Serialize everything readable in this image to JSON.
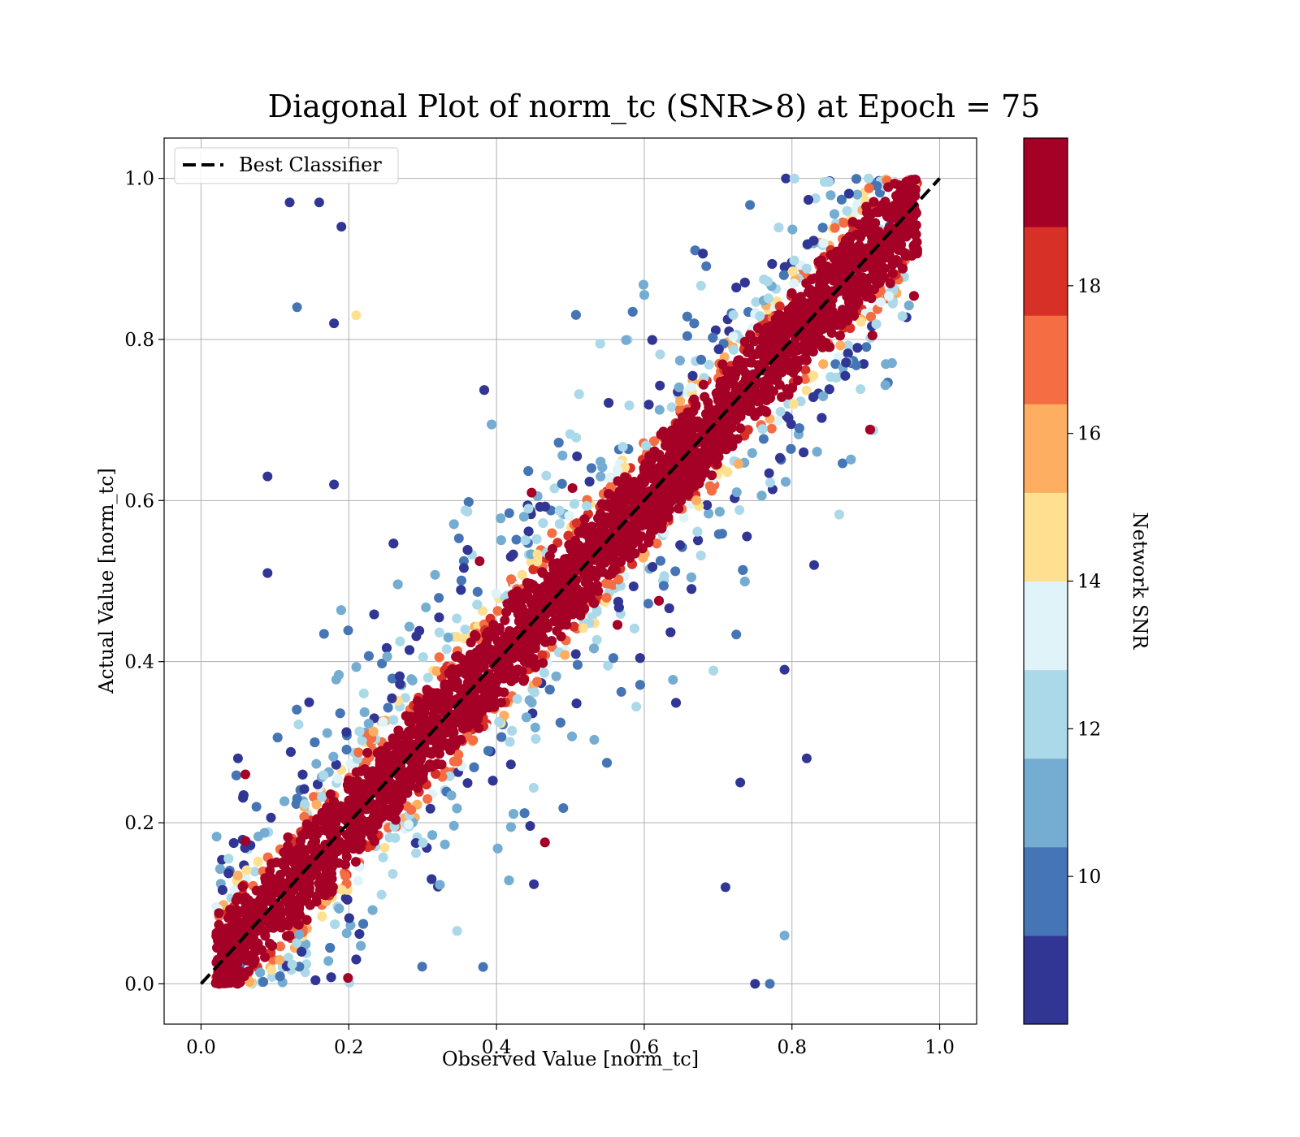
{
  "chart_data": {
    "type": "scatter",
    "title": "Diagonal Plot of norm_tc (SNR>8) at Epoch = 75",
    "xlabel": "Observed Value [norm_tc]",
    "ylabel": "Actual Value [norm_tc]",
    "xlim": [
      -0.05,
      1.05
    ],
    "ylim": [
      -0.05,
      1.05
    ],
    "xticks": [
      0.0,
      0.2,
      0.4,
      0.6,
      0.8,
      1.0
    ],
    "yticks": [
      0.0,
      0.2,
      0.4,
      0.6,
      0.8,
      1.0
    ],
    "xtick_labels": [
      "0.0",
      "0.2",
      "0.4",
      "0.6",
      "0.8",
      "1.0"
    ],
    "ytick_labels": [
      "0.0",
      "0.2",
      "0.4",
      "0.6",
      "0.8",
      "1.0"
    ],
    "grid": true,
    "legend": {
      "position": "top-left",
      "entries": [
        "Best Classifier"
      ]
    },
    "reference_line": {
      "name": "Best Classifier",
      "x": [
        0.0,
        1.0
      ],
      "y": [
        0.0,
        1.0
      ],
      "style": "dashed",
      "color": "#000000"
    },
    "colorbar": {
      "label": "Network SNR",
      "range": [
        8,
        20
      ],
      "ticks": [
        10,
        12,
        14,
        16,
        18
      ],
      "tick_labels": [
        "10",
        "12",
        "14",
        "16",
        "18"
      ],
      "colors": [
        "#313695",
        "#4575b4",
        "#74add1",
        "#abd9e9",
        "#e0f3f8",
        "#fee090",
        "#fdae61",
        "#f46d43",
        "#d73027",
        "#a50026"
      ]
    },
    "series": [
      {
        "marker": "circle",
        "description_of_distribution": "dense diagonal band",
        "points_sample": [
          {
            "x": 0.12,
            "y": 0.97,
            "snr": 9
          },
          {
            "x": 0.16,
            "y": 0.97,
            "snr": 9
          },
          {
            "x": 0.13,
            "y": 0.84,
            "snr": 10
          },
          {
            "x": 0.19,
            "y": 0.94,
            "snr": 9
          },
          {
            "x": 0.21,
            "y": 0.83,
            "snr": 15
          },
          {
            "x": 0.18,
            "y": 0.82,
            "snr": 9
          },
          {
            "x": 0.09,
            "y": 0.63,
            "snr": 9
          },
          {
            "x": 0.18,
            "y": 0.62,
            "snr": 9
          },
          {
            "x": 0.09,
            "y": 0.51,
            "snr": 9
          },
          {
            "x": 0.82,
            "y": 0.28,
            "snr": 9
          },
          {
            "x": 0.79,
            "y": 0.39,
            "snr": 9
          },
          {
            "x": 0.75,
            "y": 0.0,
            "snr": 9
          },
          {
            "x": 0.79,
            "y": 0.06,
            "snr": 11
          },
          {
            "x": 0.77,
            "y": 0.0,
            "snr": 10
          },
          {
            "x": 0.71,
            "y": 0.12,
            "snr": 9
          },
          {
            "x": 0.73,
            "y": 0.25,
            "snr": 9
          },
          {
            "x": 0.83,
            "y": 0.52,
            "snr": 9
          },
          {
            "x": 0.05,
            "y": 0.28,
            "snr": 9
          },
          {
            "x": 0.06,
            "y": 0.26,
            "snr": 19
          }
        ]
      }
    ]
  }
}
